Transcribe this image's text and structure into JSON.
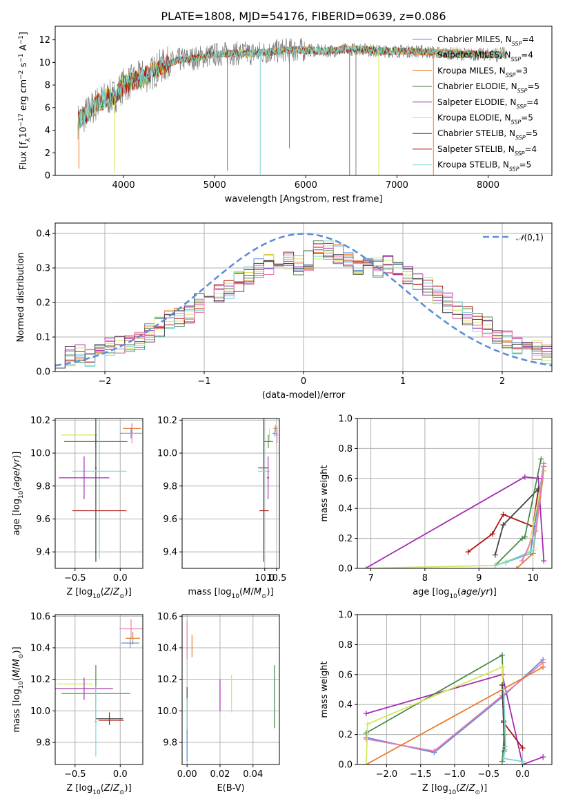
{
  "figure_title": "PLATE=1808, MJD=54176, FIBERID=0639, z=0.086",
  "colors": {
    "chabrier_miles": "#5b8fd6",
    "salpeter_miles": "#e87b2a",
    "kroupa_miles": "#e67a2e",
    "chabrier_elodie": "#4a8a4a",
    "salpeter_elodie": "#a52bb3",
    "kroupa_elodie": "#d4e85a",
    "chabrier_stelib": "#444444",
    "salpeter_stelib": "#b01414",
    "kroupa_stelib": "#7fd6d6",
    "pink": "#e87bb0",
    "gaussian": "#5b8fd6"
  },
  "chart_data": [
    {
      "id": "spectrum",
      "type": "line",
      "title": "PLATE=1808, MJD=54176, FIBERID=0639, z=0.086",
      "xlabel": "wavelength [Angstrom, rest frame]",
      "ylabel": "Flux [f_λ10^-17 erg cm^-2 s^-1 A^-1]",
      "xlim": [
        3250,
        8700
      ],
      "ylim": [
        0,
        13.2
      ],
      "xticks": [
        4000,
        5000,
        6000,
        7000,
        8000
      ],
      "yticks": [
        0,
        2,
        4,
        6,
        8,
        10,
        12
      ],
      "grid": false,
      "legend_position": "top-right",
      "legend": [
        "Chabrier MILES, N_SSP=4",
        "Salpeter MILES, N_SSP=4",
        "Kroupa MILES, N_SSP=3",
        "Chabrier ELODIE, N_SSP=5",
        "Salpeter ELODIE, N_SSP=4",
        "Kroupa ELODIE, N_SSP=5",
        "Chabrier STELIB, N_SSP=5",
        "Salpeter STELIB, N_SSP=4",
        "Kroupa STELIB, N_SSP=5"
      ],
      "continuum_x": [
        3500,
        3600,
        3700,
        3800,
        3900,
        4000,
        4100,
        4200,
        4300,
        4400,
        4500,
        4600,
        4800,
        5000,
        5200,
        5400,
        5600,
        5800,
        6000,
        6200,
        6400,
        6600,
        6800,
        7000,
        7200,
        7400,
        7600,
        7800,
        8000,
        8200
      ],
      "continuum_y": [
        4.8,
        5.5,
        6.3,
        6.8,
        7.0,
        8.0,
        8.3,
        8.7,
        9.0,
        9.6,
        9.9,
        10.2,
        10.4,
        10.7,
        10.8,
        10.8,
        10.9,
        11.1,
        11.1,
        11.0,
        11.1,
        11.2,
        11.0,
        11.0,
        11.0,
        10.9,
        10.8,
        10.7,
        10.7,
        10.7
      ]
    },
    {
      "id": "residuals",
      "type": "histogram",
      "xlabel": "(data-model)/error",
      "ylabel": "Normed distribution",
      "xlim": [
        -2.5,
        2.5
      ],
      "ylim": [
        0,
        0.43
      ],
      "xticks": [
        -2,
        -1,
        0,
        1,
        2
      ],
      "yticks": [
        0.0,
        0.1,
        0.2,
        0.3,
        0.4
      ],
      "grid": true,
      "legend_position": "top-right",
      "legend": [
        "N(0,1)"
      ],
      "bin_width": 0.1,
      "envelope_bins": [
        -2.5,
        -2.4,
        -2.3,
        -2.2,
        -2.1,
        -2.0,
        -1.9,
        -1.8,
        -1.7,
        -1.6,
        -1.5,
        -1.4,
        -1.3,
        -1.2,
        -1.1,
        -1.0,
        -0.9,
        -0.8,
        -0.7,
        -0.6,
        -0.5,
        -0.4,
        -0.3,
        -0.2,
        -0.1,
        0.0,
        0.1,
        0.2,
        0.3,
        0.4,
        0.5,
        0.6,
        0.7,
        0.8,
        0.9,
        1.0,
        1.1,
        1.2,
        1.3,
        1.4,
        1.5,
        1.6,
        1.7,
        1.8,
        1.9,
        2.0,
        2.1,
        2.2,
        2.3,
        2.4
      ],
      "envelope_values": [
        0.04,
        0.045,
        0.05,
        0.045,
        0.05,
        0.07,
        0.08,
        0.085,
        0.09,
        0.11,
        0.13,
        0.15,
        0.16,
        0.17,
        0.2,
        0.22,
        0.23,
        0.24,
        0.26,
        0.28,
        0.3,
        0.31,
        0.32,
        0.32,
        0.31,
        0.32,
        0.35,
        0.35,
        0.34,
        0.33,
        0.31,
        0.32,
        0.3,
        0.31,
        0.29,
        0.28,
        0.26,
        0.25,
        0.22,
        0.2,
        0.18,
        0.16,
        0.14,
        0.13,
        0.1,
        0.09,
        0.08,
        0.07,
        0.06,
        0.05
      ]
    },
    {
      "id": "age_vs_Z",
      "type": "errorbar",
      "xlabel": "Z [log10(Z/Z_sun)]",
      "ylabel": "age [log10(age/yr)]",
      "xlim": [
        -0.72,
        0.25
      ],
      "ylim": [
        9.3,
        10.21
      ],
      "xticks": [
        -0.5,
        0.0
      ],
      "yticks": [
        9.4,
        9.6,
        9.8,
        10.0,
        10.2
      ],
      "grid": true,
      "points": [
        {
          "model": "kroupa_elodie",
          "x": -0.45,
          "y": 10.11,
          "xerr": 0.2,
          "yerr": 0.0
        },
        {
          "model": "chabrier_elodie",
          "x": -0.27,
          "y": 10.07,
          "xerr": 0.35,
          "yerr": 0.04
        },
        {
          "model": "salpeter_miles",
          "x": 0.13,
          "y": 10.15,
          "xerr": 0.1,
          "yerr": 0.03
        },
        {
          "model": "chabrier_miles",
          "x": 0.12,
          "y": 10.12,
          "xerr": 0.12,
          "yerr": 0.03
        },
        {
          "model": "pink",
          "x": 0.13,
          "y": 10.12,
          "xerr": 0.1,
          "yerr": 0.06
        },
        {
          "model": "chabrier_stelib",
          "x": -0.27,
          "y": 9.91,
          "xerr": 0.01,
          "yerr": 0.57
        },
        {
          "model": "kroupa_stelib",
          "x": -0.23,
          "y": 9.89,
          "xerr": 0.3,
          "yerr": 0.53
        },
        {
          "model": "salpeter_elodie",
          "x": -0.4,
          "y": 9.85,
          "xerr": 0.28,
          "yerr": 0.13
        },
        {
          "model": "salpeter_stelib",
          "x": -0.23,
          "y": 9.65,
          "xerr": 0.3,
          "yerr": 0.0
        }
      ]
    },
    {
      "id": "age_vs_mass",
      "type": "errorbar",
      "xlabel": "mass [log10(M/M_sun)]",
      "ylabel": "",
      "xlim": [
        6.5,
        10.62
      ],
      "ylim": [
        9.3,
        10.21
      ],
      "xticks": [
        10.0,
        10.5
      ],
      "yticks": [
        9.4,
        9.6,
        9.8,
        10.0,
        10.2
      ],
      "grid": true,
      "points": [
        {
          "model": "kroupa_elodie",
          "x": 10.2,
          "y": 10.11,
          "xerr": 0.05,
          "yerr": 0.04
        },
        {
          "model": "chabrier_elodie",
          "x": 10.15,
          "y": 10.07,
          "xerr": 0.2,
          "yerr": 0.04
        },
        {
          "model": "salpeter_miles",
          "x": 10.45,
          "y": 10.15,
          "xerr": 0.08,
          "yerr": 0.02
        },
        {
          "model": "chabrier_miles",
          "x": 10.43,
          "y": 10.12,
          "xerr": 0.1,
          "yerr": 0.02
        },
        {
          "model": "pink",
          "x": 10.52,
          "y": 10.11,
          "xerr": 0.05,
          "yerr": 0.05
        },
        {
          "model": "chabrier_stelib",
          "x": 9.94,
          "y": 9.91,
          "xerr": 0.22,
          "yerr": 0.57
        },
        {
          "model": "kroupa_stelib",
          "x": 9.96,
          "y": 9.89,
          "xerr": 0.25,
          "yerr": 0.55
        },
        {
          "model": "salpeter_elodie",
          "x": 10.14,
          "y": 9.85,
          "xerr": 0.05,
          "yerr": 0.13
        },
        {
          "model": "salpeter_stelib",
          "x": 9.97,
          "y": 9.65,
          "xerr": 0.2,
          "yerr": 0.0
        }
      ]
    },
    {
      "id": "weight_vs_age",
      "type": "line",
      "xlabel": "age [log10(age/yr)]",
      "ylabel": "mass weight",
      "xlim": [
        6.75,
        10.35
      ],
      "ylim": [
        0,
        1.0
      ],
      "xticks": [
        7,
        8,
        9,
        10
      ],
      "yticks": [
        0.0,
        0.2,
        0.4,
        0.6,
        0.8,
        1.0
      ],
      "grid": true,
      "series": [
        {
          "model": "salpeter_elodie",
          "x": [
            10.2,
            10.1,
            9.85,
            6.9
          ],
          "y": [
            0.05,
            0.6,
            0.61,
            0.0
          ]
        },
        {
          "model": "salpeter_stelib",
          "x": [
            8.8,
            9.25,
            9.45,
            10.0,
            10.1
          ],
          "y": [
            0.11,
            0.23,
            0.36,
            0.28,
            0.53
          ]
        },
        {
          "model": "chabrier_stelib",
          "x": [
            9.3,
            9.45,
            10.1
          ],
          "y": [
            0.09,
            0.29,
            0.53
          ]
        },
        {
          "model": "chabrier_miles",
          "x": [
            9.5,
            9.95,
            10.1,
            10.2
          ],
          "y": [
            0.04,
            0.1,
            0.45,
            0.7
          ]
        },
        {
          "model": "chabrier_elodie",
          "x": [
            9.3,
            9.8,
            9.85,
            10.15
          ],
          "y": [
            0.02,
            0.2,
            0.21,
            0.73
          ]
        },
        {
          "model": "salpeter_miles",
          "x": [
            9.7,
            10.0,
            10.2
          ],
          "y": [
            0.0,
            0.1,
            0.65
          ]
        },
        {
          "model": "kroupa_elodie",
          "x": [
            6.9,
            9.3,
            9.9,
            10.2
          ],
          "y": [
            0.0,
            0.02,
            0.1,
            0.65
          ]
        },
        {
          "model": "kroupa_stelib",
          "x": [
            9.3,
            9.5,
            10.0,
            10.2
          ],
          "y": [
            0.02,
            0.04,
            0.12,
            0.68
          ]
        },
        {
          "model": "pink",
          "x": [
            9.8,
            10.05,
            10.2
          ],
          "y": [
            0.05,
            0.25,
            0.68
          ]
        }
      ]
    },
    {
      "id": "mass_vs_Z",
      "type": "errorbar",
      "xlabel": "Z [log10(Z/Z_sun)]",
      "ylabel": "mass [log10(M/M_sun)]",
      "xlim": [
        -0.72,
        0.25
      ],
      "ylim": [
        9.66,
        10.61
      ],
      "xticks": [
        -0.5,
        0.0
      ],
      "yticks": [
        9.8,
        10.0,
        10.2,
        10.4,
        10.6
      ],
      "grid": true,
      "points": [
        {
          "model": "pink",
          "x": 0.12,
          "y": 10.52,
          "xerr": 0.13,
          "yerr": 0.06
        },
        {
          "model": "salpeter_miles",
          "x": 0.14,
          "y": 10.46,
          "xerr": 0.08,
          "yerr": 0.04
        },
        {
          "model": "chabrier_miles",
          "x": 0.11,
          "y": 10.43,
          "xerr": 0.1,
          "yerr": 0.03
        },
        {
          "model": "kroupa_elodie",
          "x": -0.5,
          "y": 10.17,
          "xerr": 0.2,
          "yerr": 0.0
        },
        {
          "model": "salpeter_elodie",
          "x": -0.4,
          "y": 10.14,
          "xerr": 0.32,
          "yerr": 0.07
        },
        {
          "model": "chabrier_elodie",
          "x": -0.27,
          "y": 10.11,
          "xerr": 0.38,
          "yerr": 0.18
        },
        {
          "model": "chabrier_stelib",
          "x": -0.12,
          "y": 9.95,
          "xerr": 0.15,
          "yerr": 0.04
        },
        {
          "model": "salpeter_stelib",
          "x": -0.1,
          "y": 9.94,
          "xerr": 0.14,
          "yerr": 0.0
        },
        {
          "model": "kroupa_stelib",
          "x": -0.27,
          "y": 9.93,
          "xerr": 0.02,
          "yerr": 0.22
        }
      ]
    },
    {
      "id": "mass_vs_ebv",
      "type": "errorbar",
      "xlabel": "E(B-V)",
      "ylabel": "",
      "xlim": [
        -0.003,
        0.056
      ],
      "ylim": [
        9.66,
        10.61
      ],
      "xticks": [
        0.0,
        0.02,
        0.04
      ],
      "yticks": [
        9.8,
        10.0,
        10.2,
        10.4,
        10.6
      ],
      "grid": true,
      "points": [
        {
          "model": "pink",
          "x": 0.0,
          "y": 10.45,
          "xerr": 0.0,
          "yerr": 0.12
        },
        {
          "model": "salpeter_miles",
          "x": 0.003,
          "y": 10.41,
          "xerr": 0.0,
          "yerr": 0.07
        },
        {
          "model": "chabrier_elodie",
          "x": 0.053,
          "y": 10.09,
          "xerr": 0.0,
          "yerr": 0.2
        },
        {
          "model": "kroupa_elodie",
          "x": 0.027,
          "y": 10.11,
          "xerr": 0.0,
          "yerr": 0.12
        },
        {
          "model": "salpeter_elodie",
          "x": 0.02,
          "y": 10.1,
          "xerr": 0.0,
          "yerr": 0.1
        },
        {
          "model": "chabrier_stelib",
          "x": 0.0,
          "y": 10.0,
          "xerr": 0.0,
          "yerr": 0.15
        },
        {
          "model": "kroupa_stelib",
          "x": 0.0,
          "y": 9.88,
          "xerr": 0.0,
          "yerr": 0.2
        },
        {
          "model": "chabrier_miles",
          "x": 0.0,
          "y": 9.78,
          "xerr": 0.0,
          "yerr": 0.1
        }
      ]
    },
    {
      "id": "weight_vs_Z",
      "type": "line",
      "xlabel": "Z [log10(Z/Z_sun)]",
      "ylabel": "mass weight",
      "xlim": [
        -2.43,
        0.43
      ],
      "ylim": [
        0,
        1.0
      ],
      "xticks": [
        -2.0,
        -1.5,
        -1.0,
        -0.5,
        0.0
      ],
      "yticks": [
        0.0,
        0.2,
        0.4,
        0.6,
        0.8,
        1.0
      ],
      "grid": true,
      "series": [
        {
          "model": "salpeter_elodie",
          "x": [
            -2.3,
            -0.3,
            0.0,
            0.3
          ],
          "y": [
            0.34,
            0.6,
            0.0,
            0.05
          ]
        },
        {
          "model": "chabrier_elodie",
          "x": [
            -2.3,
            -0.3,
            -0.27,
            -0.3
          ],
          "y": [
            0.21,
            0.73,
            0.2,
            0.02
          ]
        },
        {
          "model": "chabrier_miles",
          "x": [
            -2.3,
            -1.3,
            -0.3,
            0.3
          ],
          "y": [
            0.18,
            0.08,
            0.45,
            0.7
          ]
        },
        {
          "model": "pink",
          "x": [
            -2.3,
            -1.3,
            -0.3,
            0.3
          ],
          "y": [
            0.17,
            0.09,
            0.46,
            0.68
          ]
        },
        {
          "model": "salpeter_miles",
          "x": [
            -2.3,
            0.3
          ],
          "y": [
            0.0,
            0.65
          ]
        },
        {
          "model": "kroupa_elodie",
          "x": [
            -2.3,
            -2.28,
            -0.3,
            -0.26
          ],
          "y": [
            0.0,
            0.27,
            0.65,
            0.1
          ]
        },
        {
          "model": "salpeter_stelib",
          "x": [
            -0.3,
            -0.28,
            0.0
          ],
          "y": [
            0.53,
            0.28,
            0.11
          ]
        },
        {
          "model": "chabrier_stelib",
          "x": [
            -0.3,
            -0.28,
            -0.27
          ],
          "y": [
            0.53,
            0.29,
            0.09
          ]
        },
        {
          "model": "kroupa_stelib",
          "x": [
            -0.28,
            -0.25,
            -0.28,
            0.0
          ],
          "y": [
            0.5,
            0.12,
            0.04,
            0.02
          ]
        }
      ]
    }
  ]
}
